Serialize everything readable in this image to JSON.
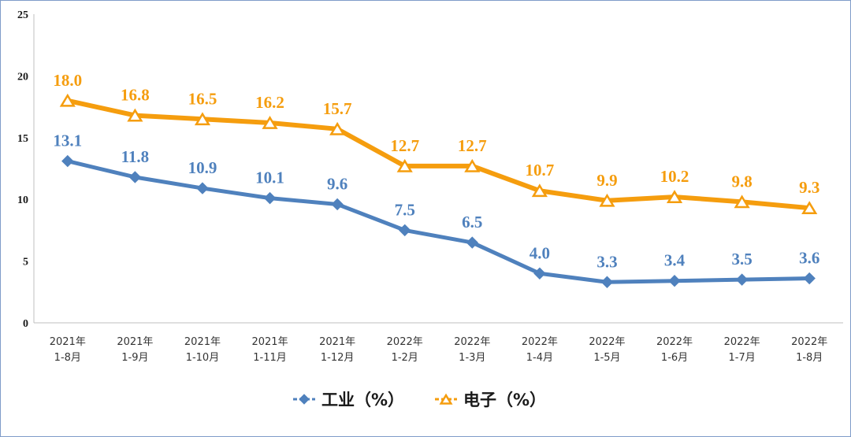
{
  "chart_data": {
    "type": "line",
    "title": "",
    "xlabel": "",
    "ylabel": "",
    "ylim": [
      0,
      25
    ],
    "yticks": [
      0,
      5,
      10,
      15,
      20,
      25
    ],
    "grid": false,
    "legend_position": "bottom-center",
    "categories": [
      [
        "2021年",
        "1-8月"
      ],
      [
        "2021年",
        "1-9月"
      ],
      [
        "2021年",
        "1-10月"
      ],
      [
        "2021年",
        "1-11月"
      ],
      [
        "2021年",
        "1-12月"
      ],
      [
        "2022年",
        "1-2月"
      ],
      [
        "2022年",
        "1-3月"
      ],
      [
        "2022年",
        "1-4月"
      ],
      [
        "2022年",
        "1-5月"
      ],
      [
        "2022年",
        "1-6月"
      ],
      [
        "2022年",
        "1-7月"
      ],
      [
        "2022年",
        "1-8月"
      ]
    ],
    "series": [
      {
        "name": "工业（%）",
        "marker": "diamond",
        "color": "#4f81bd",
        "values": [
          13.1,
          11.8,
          10.9,
          10.1,
          9.6,
          7.5,
          6.5,
          4.0,
          3.3,
          3.4,
          3.5,
          3.6
        ],
        "labels": [
          "13.1",
          "11.8",
          "10.9",
          "10.1",
          "9.6",
          "7.5",
          "6.5",
          "4.0",
          "3.3",
          "3.4",
          "3.5",
          "3.6"
        ]
      },
      {
        "name": "电子（%）",
        "marker": "triangle",
        "color": "#f59d0e",
        "values": [
          18.0,
          16.8,
          16.5,
          16.2,
          15.7,
          12.7,
          12.7,
          10.7,
          9.9,
          10.2,
          9.8,
          9.3
        ],
        "labels": [
          "18.0",
          "16.8",
          "16.5",
          "16.2",
          "15.7",
          "12.7",
          "12.7",
          "10.7",
          "9.9",
          "10.2",
          "9.8",
          "9.3"
        ]
      }
    ]
  }
}
